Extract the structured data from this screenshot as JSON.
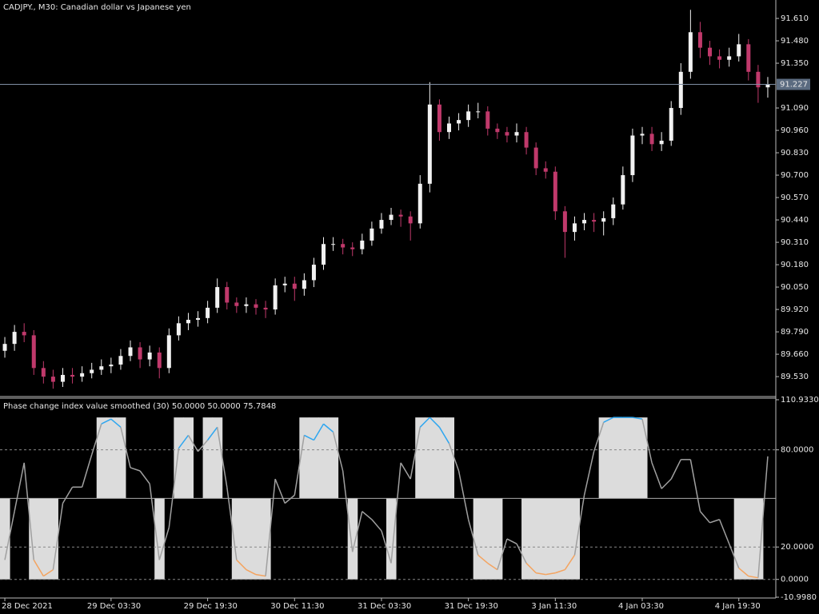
{
  "chart_data": [
    {
      "type": "candlestick",
      "title": "CADJPY., M30:  Canadian dollar vs Japanese yen",
      "categories": [
        "28 Dec 2021",
        null,
        null,
        null,
        null,
        null,
        null,
        null,
        null,
        null,
        null,
        "29 Dec 03:30",
        null,
        null,
        null,
        null,
        null,
        null,
        null,
        null,
        null,
        "29 Dec 19:30",
        null,
        null,
        null,
        null,
        null,
        null,
        null,
        null,
        "30 Dec 11:30",
        null,
        null,
        null,
        null,
        null,
        null,
        null,
        null,
        "31 Dec 03:30",
        null,
        null,
        null,
        null,
        null,
        null,
        null,
        null,
        "31 Dec 19:30",
        null,
        null,
        null,
        null,
        null,
        null,
        null,
        null,
        "3 Jan 11:30",
        null,
        null,
        null,
        null,
        null,
        null,
        null,
        null,
        "4 Jan 03:30",
        null,
        null,
        null,
        null,
        null,
        null,
        null,
        null,
        null,
        "4 Jan 19:30",
        null,
        null,
        null
      ],
      "open": [
        89.68,
        89.72,
        89.79,
        89.77,
        89.58,
        89.53,
        89.5,
        89.54,
        89.53,
        89.55,
        89.57,
        89.59,
        89.6,
        89.65,
        89.7,
        89.63,
        89.67,
        89.58,
        89.77,
        89.84,
        89.86,
        89.87,
        89.93,
        90.05,
        89.96,
        89.94,
        89.95,
        89.93,
        89.92,
        90.06,
        90.07,
        90.04,
        90.09,
        90.18,
        90.3,
        90.3,
        90.28,
        90.27,
        90.32,
        90.39,
        90.44,
        90.47,
        90.46,
        90.42,
        90.65,
        91.11,
        90.95,
        91.0,
        91.02,
        91.07,
        91.07,
        90.97,
        90.95,
        90.93,
        90.95,
        90.86,
        90.74,
        90.72,
        90.49,
        90.37,
        90.42,
        90.44,
        90.43,
        90.45,
        90.53,
        90.7,
        90.93,
        90.94,
        90.88,
        90.9,
        91.09,
        91.3,
        91.53,
        91.44,
        91.39,
        91.37,
        91.39,
        91.46,
        91.3,
        91.21
      ],
      "high": [
        89.76,
        89.83,
        89.84,
        89.8,
        89.62,
        89.57,
        89.58,
        89.58,
        89.59,
        89.61,
        89.63,
        89.64,
        89.69,
        89.74,
        89.73,
        89.71,
        89.7,
        89.81,
        89.88,
        89.9,
        89.91,
        89.97,
        90.1,
        90.08,
        89.99,
        89.99,
        89.98,
        89.97,
        90.1,
        90.11,
        90.11,
        90.13,
        90.22,
        90.34,
        90.34,
        90.33,
        90.31,
        90.36,
        90.43,
        90.48,
        90.51,
        90.5,
        90.49,
        90.7,
        91.24,
        91.14,
        91.04,
        91.06,
        91.11,
        91.12,
        91.1,
        91.0,
        90.98,
        91.0,
        90.98,
        90.89,
        90.78,
        90.75,
        90.52,
        90.46,
        90.48,
        90.48,
        90.49,
        90.57,
        90.75,
        90.97,
        90.98,
        90.98,
        90.95,
        91.13,
        91.35,
        91.66,
        91.59,
        91.48,
        91.43,
        91.44,
        91.52,
        91.49,
        91.34,
        91.27
      ],
      "low": [
        89.64,
        89.68,
        89.73,
        89.54,
        89.49,
        89.46,
        89.47,
        89.49,
        89.5,
        89.52,
        89.54,
        89.55,
        89.57,
        89.62,
        89.58,
        89.59,
        89.52,
        89.55,
        89.74,
        89.8,
        89.82,
        89.84,
        89.9,
        89.92,
        89.9,
        89.9,
        89.89,
        89.87,
        89.89,
        90.02,
        89.97,
        90.0,
        90.05,
        90.15,
        90.26,
        90.24,
        90.23,
        90.24,
        90.29,
        90.36,
        90.41,
        90.4,
        90.32,
        90.39,
        90.6,
        90.9,
        90.91,
        90.96,
        90.98,
        91.03,
        90.93,
        90.91,
        90.89,
        90.89,
        90.82,
        90.7,
        90.68,
        90.44,
        90.22,
        90.32,
        90.38,
        90.37,
        90.35,
        90.41,
        90.5,
        90.66,
        90.88,
        90.84,
        90.84,
        90.87,
        91.05,
        91.26,
        91.38,
        91.34,
        91.32,
        91.33,
        91.36,
        91.25,
        91.12,
        91.15
      ],
      "close": [
        89.72,
        89.79,
        89.77,
        89.58,
        89.53,
        89.5,
        89.54,
        89.53,
        89.55,
        89.57,
        89.59,
        89.6,
        89.65,
        89.7,
        89.63,
        89.67,
        89.58,
        89.77,
        89.84,
        89.86,
        89.87,
        89.93,
        90.05,
        89.96,
        89.94,
        89.95,
        89.93,
        89.92,
        90.06,
        90.07,
        90.04,
        90.09,
        90.18,
        90.3,
        90.3,
        90.28,
        90.27,
        90.32,
        90.39,
        90.44,
        90.47,
        90.46,
        90.42,
        90.65,
        91.11,
        90.95,
        91.0,
        91.02,
        91.07,
        91.07,
        90.97,
        90.95,
        90.93,
        90.95,
        90.86,
        90.74,
        90.72,
        90.49,
        90.37,
        90.42,
        90.44,
        90.43,
        90.45,
        90.53,
        90.7,
        90.93,
        90.94,
        90.88,
        90.9,
        91.09,
        91.3,
        91.53,
        91.44,
        91.39,
        91.37,
        91.39,
        91.46,
        91.3,
        91.21,
        91.227
      ],
      "bull_color": "#f2f2f2",
      "bear_color": "#c0396b",
      "current_price": 91.227,
      "current_price_color": "#5b6b80",
      "ylim": [
        89.419,
        91.717
      ],
      "yticks": [
        {
          "value": 91.61,
          "label": "91.610"
        },
        {
          "value": 91.48,
          "label": "91.480"
        },
        {
          "value": 91.35,
          "label": "91.350"
        },
        {
          "value": 91.09,
          "label": "91.090"
        },
        {
          "value": 90.96,
          "label": "90.960"
        },
        {
          "value": 90.83,
          "label": "90.830"
        },
        {
          "value": 90.7,
          "label": "90.700"
        },
        {
          "value": 90.57,
          "label": "90.570"
        },
        {
          "value": 90.44,
          "label": "90.440"
        },
        {
          "value": 90.31,
          "label": "90.310"
        },
        {
          "value": 90.18,
          "label": "90.180"
        },
        {
          "value": 90.05,
          "label": "90.050"
        },
        {
          "value": 89.92,
          "label": "89.920"
        },
        {
          "value": 89.79,
          "label": "89.790"
        },
        {
          "value": 89.66,
          "label": "89.660"
        },
        {
          "value": 89.53,
          "label": "89.530"
        }
      ]
    },
    {
      "type": "line",
      "title": "Phase change index value smoothed (30) 50.0000 50.0000 75.7848",
      "values": [
        12,
        42,
        72,
        12,
        2,
        6,
        47,
        57,
        57,
        77,
        96,
        99,
        94,
        69,
        67,
        59,
        12,
        32,
        81,
        89,
        79,
        86,
        94,
        57,
        12,
        6,
        3,
        2,
        62,
        47,
        52,
        89,
        86,
        96,
        91,
        67,
        17,
        42,
        37,
        30,
        10,
        72,
        62,
        94,
        100,
        94,
        84,
        67,
        37,
        15,
        10,
        6,
        25,
        22,
        10,
        4,
        3,
        4,
        6,
        15,
        52,
        79,
        97,
        100,
        100,
        100,
        99,
        72,
        56,
        62,
        74,
        74,
        42,
        35,
        37,
        22,
        7,
        2,
        1,
        76
      ],
      "color": "#a0a0a0",
      "up_color": "#2ea6f0",
      "down_color": "#f4a460",
      "zone_color": "#dcdcdc",
      "levels": [
        80,
        20,
        0
      ],
      "mid_level": 50,
      "ylim": [
        -10.998,
        110.933
      ],
      "yticks": [
        {
          "value": 110.933,
          "label": "110.9330"
        },
        {
          "value": 80,
          "label": "80.0000"
        },
        {
          "value": 20,
          "label": "20.0000"
        },
        {
          "value": 0,
          "label": "0.0000"
        },
        {
          "value": -10.998,
          "label": "-10.9980"
        }
      ]
    }
  ]
}
